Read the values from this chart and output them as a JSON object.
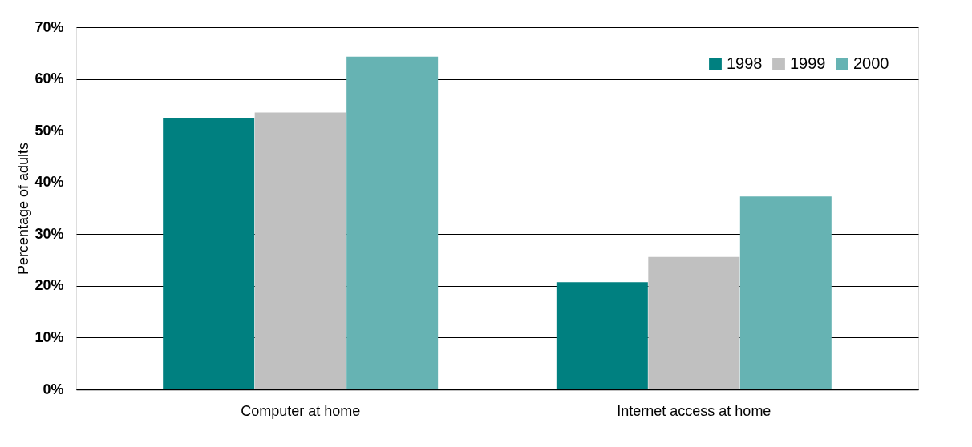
{
  "chart_data": {
    "type": "bar",
    "ylabel": "Percentage of adults",
    "categories": [
      "Computer at home",
      "Internet access at home"
    ],
    "series": [
      {
        "name": "1998",
        "color": "#008080",
        "values": [
          52.5,
          20.7
        ]
      },
      {
        "name": "1999",
        "color": "#c0c0c0",
        "values": [
          53.5,
          25.6
        ]
      },
      {
        "name": "2000",
        "color": "#66b3b3",
        "values": [
          64.3,
          37.3
        ]
      }
    ],
    "ylim": [
      0,
      70
    ],
    "yticks": [
      {
        "value": 0,
        "label": "0%"
      },
      {
        "value": 10,
        "label": "10%"
      },
      {
        "value": 20,
        "label": "20%"
      },
      {
        "value": 30,
        "label": "30%"
      },
      {
        "value": 40,
        "label": "40%"
      },
      {
        "value": 50,
        "label": "50%"
      },
      {
        "value": 60,
        "label": "60%"
      },
      {
        "value": 70,
        "label": "70%"
      }
    ],
    "grid": "y",
    "legend": "top right"
  }
}
